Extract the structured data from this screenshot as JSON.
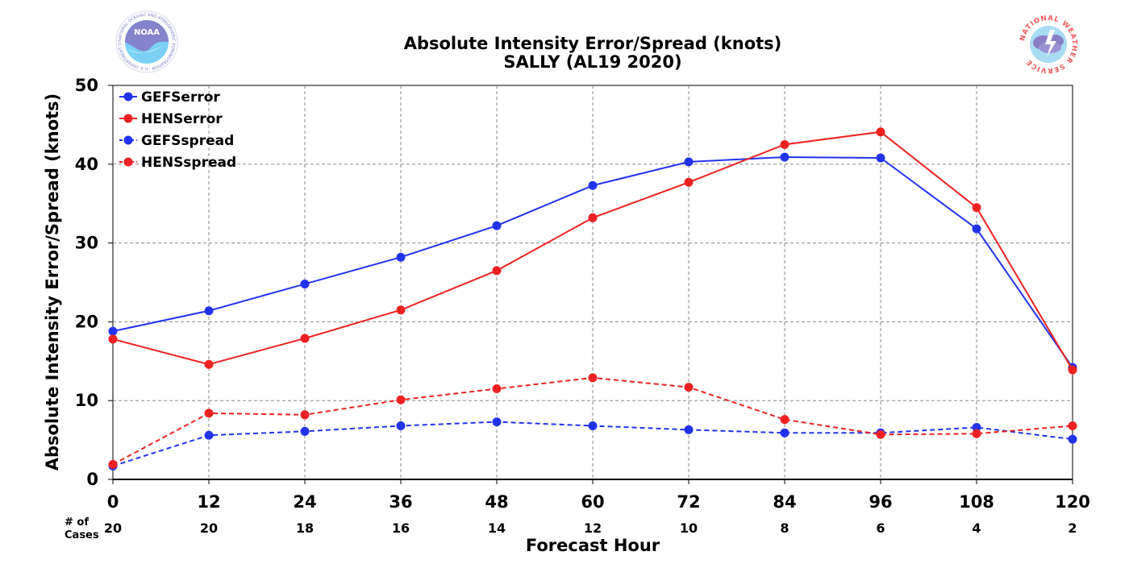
{
  "chart_data": {
    "type": "line",
    "title": "Absolute Intensity Error/Spread (knots)",
    "subtitle": "SALLY (AL19 2020)",
    "xlabel": "Forecast Hour",
    "ylabel": "Absolute Intensity Error/Spread (knots)",
    "x": [
      0,
      12,
      24,
      36,
      48,
      60,
      72,
      84,
      96,
      108,
      120
    ],
    "xlim": [
      0,
      120
    ],
    "ylim": [
      0,
      50
    ],
    "yticks": [
      0,
      10,
      20,
      30,
      40,
      50
    ],
    "grid": true,
    "legend_position": "top-left",
    "cases_label": "# of\nCases",
    "cases_label_lines": [
      "# of",
      "Cases"
    ],
    "cases": [
      20,
      20,
      18,
      16,
      14,
      12,
      10,
      8,
      6,
      4,
      2
    ],
    "series": [
      {
        "name": "GEFSerror",
        "color": "#2233ee",
        "style": "solid",
        "values": [
          18.8,
          21.4,
          24.8,
          28.2,
          32.2,
          37.3,
          40.3,
          40.9,
          40.8,
          31.8,
          14.2
        ]
      },
      {
        "name": "HENSerror",
        "color": "#ee2222",
        "style": "solid",
        "values": [
          17.8,
          14.6,
          17.9,
          21.5,
          26.5,
          33.2,
          37.7,
          42.5,
          44.1,
          34.5,
          13.9
        ]
      },
      {
        "name": "GEFSspread",
        "color": "#2233ee",
        "style": "dashed",
        "values": [
          1.7,
          5.6,
          6.1,
          6.8,
          7.3,
          6.8,
          6.3,
          5.9,
          5.9,
          6.6,
          5.1
        ]
      },
      {
        "name": "HENSspread",
        "color": "#ee2222",
        "style": "dashed",
        "values": [
          1.9,
          8.4,
          8.2,
          10.1,
          11.5,
          12.9,
          11.7,
          7.6,
          5.7,
          5.8,
          6.8
        ]
      }
    ]
  },
  "logos": {
    "left": {
      "name": "noaa-logo",
      "text": "NOAA",
      "ring_text": "NATIONAL OCEANIC AND ATMOSPHERIC ADMINISTRATION · U.S. DEPARTMENT OF COMMERCE"
    },
    "right": {
      "name": "nws-logo",
      "ring_text": "NATIONAL WEATHER SERVICE"
    }
  }
}
